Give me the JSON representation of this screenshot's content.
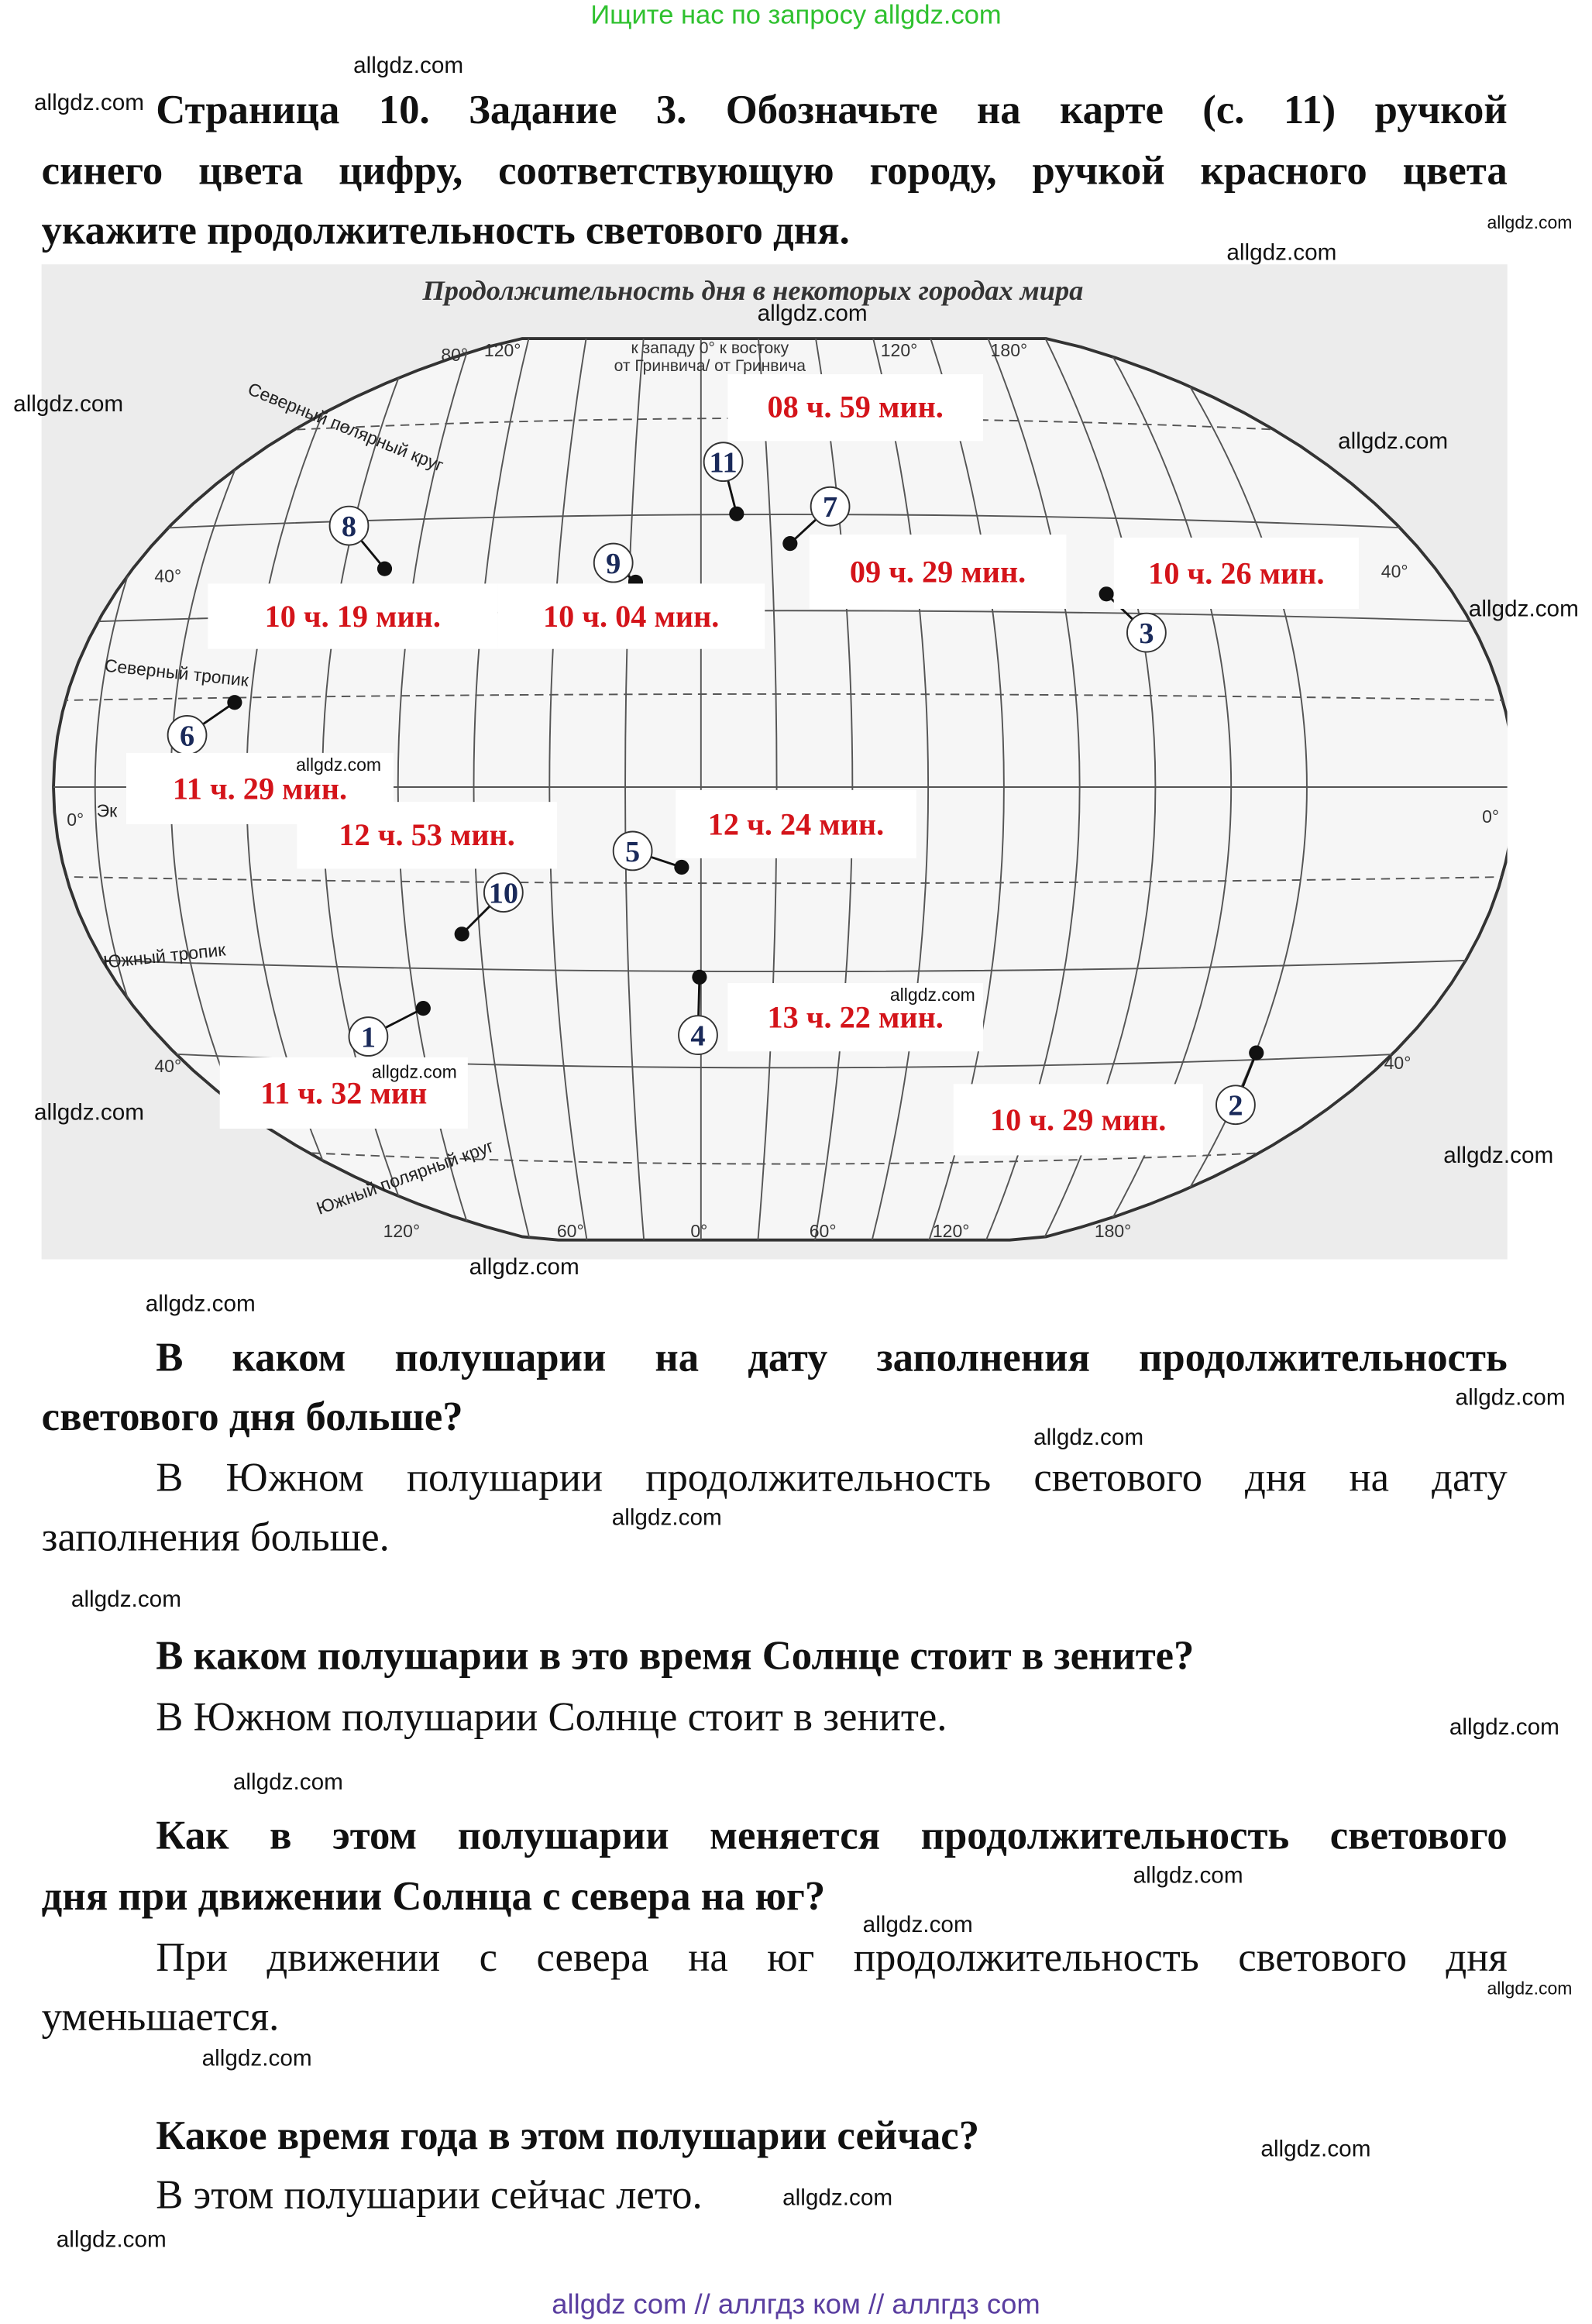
{
  "banner": "Ищите нас по запросу allgdz.com",
  "task_lines": [
    "Страница 10. Задание 3. Обозначьте на карте (с. 11) ручкой",
    "синего цвета цифру, соответствующую городу, ручкой красного цвета",
    "укажите продолжительность светового дня."
  ],
  "map": {
    "title": "Продолжительность дня в некоторых городах мира",
    "west_label": "к западу 0° к востоку",
    "gw_label": "от Гринвича/  от Гринвича",
    "circle_labels": {
      "arctic": "Северный полярный круг",
      "cancer": "Северный тропик",
      "equator": "Эк",
      "capricorn": "Южный тропик",
      "antarctic": "Южный полярный круг"
    },
    "degree_labels": {
      "top": [
        "80°",
        "120°",
        "120°",
        "180°"
      ],
      "side": [
        "40°",
        "40°",
        "40°",
        "40°",
        "0°",
        "0°"
      ],
      "bottom": [
        "120°",
        "60°",
        "0°",
        "60°",
        "120°",
        "180°"
      ]
    },
    "day_lengths": [
      "08 ч. 59 мин.",
      "10 ч. 19 мин.",
      "10 ч. 04 мин.",
      "09 ч. 29 мин.",
      "10 ч. 26 мин.",
      "11 ч. 29 мин.",
      "12 ч. 53 мин.",
      "12 ч. 24 мин.",
      "13 ч. 22 мин.",
      "11 ч. 32 мин",
      "10 ч. 29 мин."
    ],
    "city_numbers": [
      "11",
      "7",
      "8",
      "9",
      "3",
      "6",
      "5",
      "10",
      "1",
      "4",
      "2"
    ],
    "text_color": "#d4141a",
    "number_color": "#1a2a5a"
  },
  "qa": [
    {
      "q": [
        "В каком полушарии на дату заполнения продолжительность",
        "светового дня больше?"
      ],
      "a": [
        "В Южном полушарии продолжительность светового дня на дату",
        "заполнения больше."
      ]
    },
    {
      "q": [
        "В каком полушарии в это время Солнце стоит в зените?"
      ],
      "a": [
        "В Южном полушарии Солнце стоит в зените."
      ]
    },
    {
      "q": [
        "Как в этом полушарии меняется продолжительность светового",
        "дня при движении Солнца с севера на юг?"
      ],
      "a": [
        "При движении с севера на юг продолжительность светового дня",
        "уменьшается."
      ]
    },
    {
      "q": [
        "Какое время года в этом полушарии сейчас?"
      ],
      "a": [
        "В этом полушарии сейчас лето."
      ]
    }
  ],
  "watermark": "allgdz.com",
  "footer": "allgdz com  //  аллгдз ком  //  аллгдз com"
}
